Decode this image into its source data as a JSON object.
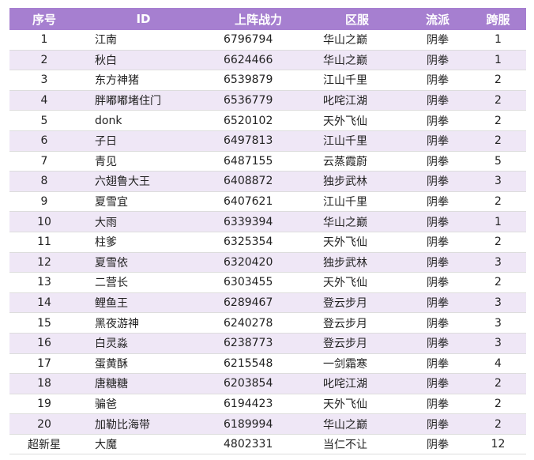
{
  "table": {
    "header": [
      "序号",
      "ID",
      "上阵战力",
      "区服",
      "流派",
      "跨服"
    ],
    "rows": [
      [
        "1",
        "江南",
        "6796794",
        "华山之巅",
        "阴拳",
        "1"
      ],
      [
        "2",
        "秋白",
        "6624466",
        "华山之巅",
        "阴拳",
        "1"
      ],
      [
        "3",
        "东方神猪",
        "6539879",
        "江山千里",
        "阴拳",
        "2"
      ],
      [
        "4",
        "胖嘟嘟堵住门",
        "6536779",
        "叱咤江湖",
        "阴拳",
        "2"
      ],
      [
        "5",
        "donk",
        "6520102",
        "天外飞仙",
        "阴拳",
        "2"
      ],
      [
        "6",
        "子日",
        "6497813",
        "江山千里",
        "阴拳",
        "2"
      ],
      [
        "7",
        "青见",
        "6487155",
        "云蒸霞蔚",
        "阴拳",
        "5"
      ],
      [
        "8",
        "六翅鲁大王",
        "6408872",
        "独步武林",
        "阴拳",
        "3"
      ],
      [
        "9",
        "夏雪宜",
        "6407621",
        "江山千里",
        "阴拳",
        "2"
      ],
      [
        "10",
        "大雨",
        "6339394",
        "华山之巅",
        "阴拳",
        "1"
      ],
      [
        "11",
        "柱爹",
        "6325354",
        "天外飞仙",
        "阴拳",
        "2"
      ],
      [
        "12",
        "夏雪依",
        "6320420",
        "独步武林",
        "阴拳",
        "3"
      ],
      [
        "13",
        "二营长",
        "6303455",
        "天外飞仙",
        "阴拳",
        "2"
      ],
      [
        "14",
        "鲤鱼王",
        "6289467",
        "登云步月",
        "阴拳",
        "3"
      ],
      [
        "15",
        "黑夜游神",
        "6240278",
        "登云步月",
        "阴拳",
        "3"
      ],
      [
        "16",
        "白灵淼",
        "6238773",
        "登云步月",
        "阴拳",
        "3"
      ],
      [
        "17",
        "蛋黄酥",
        "6215548",
        "一剑霜寒",
        "阴拳",
        "4"
      ],
      [
        "18",
        "唐糖糖",
        "6203854",
        "叱咤江湖",
        "阴拳",
        "2"
      ],
      [
        "19",
        "骗爸",
        "6194423",
        "天外飞仙",
        "阴拳",
        "2"
      ],
      [
        "20",
        "加勒比海带",
        "6189994",
        "华山之巅",
        "阴拳",
        "2"
      ],
      [
        "超新星",
        "大魔",
        "4802331",
        "当仁不让",
        "阴拳",
        "12"
      ]
    ]
  }
}
